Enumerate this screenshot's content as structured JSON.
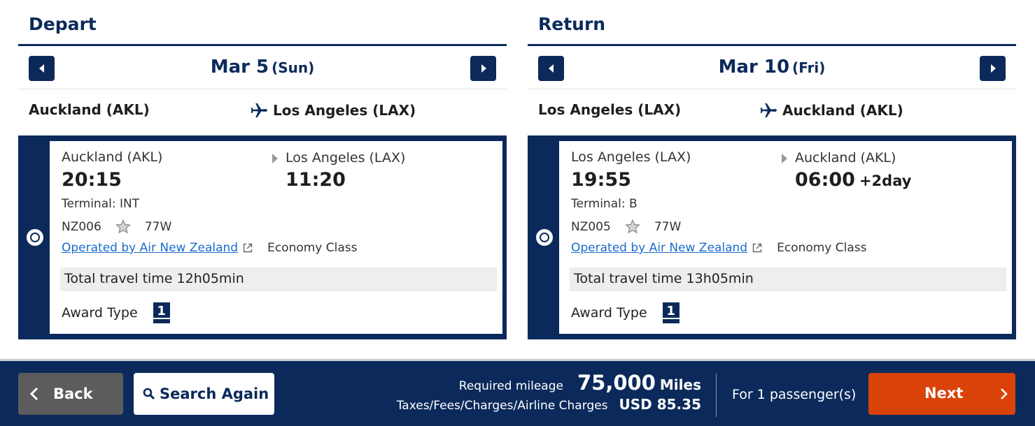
{
  "depart": {
    "title": "Depart",
    "date": "Mar 5",
    "day": "(Sun)",
    "route_from": "Auckland (AKL)",
    "route_to": "Los Angeles (LAX)",
    "flight": {
      "dep_city": "Auckland (AKL)",
      "dep_time": "20:15",
      "arr_city": "Los Angeles (LAX)",
      "arr_time": "11:20",
      "arr_plus": "",
      "terminal": "Terminal: INT",
      "flight_no": "NZ006",
      "aircraft": "77W",
      "operated_by": "Operated by Air New Zealand",
      "cabin": "Economy Class",
      "total_time": "Total travel time 12h05min",
      "award_label": "Award Type",
      "award_value": "1"
    }
  },
  "return": {
    "title": "Return",
    "date": "Mar 10",
    "day": "(Fri)",
    "route_from": "Los Angeles (LAX)",
    "route_to": "Auckland (AKL)",
    "flight": {
      "dep_city": "Los Angeles (LAX)",
      "dep_time": "19:55",
      "arr_city": "Auckland (AKL)",
      "arr_time": "06:00",
      "arr_plus": "+2day",
      "terminal": "Terminal: B",
      "flight_no": "NZ005",
      "aircraft": "77W",
      "operated_by": "Operated by Air New Zealand",
      "cabin": "Economy Class",
      "total_time": "Total travel time 13h05min",
      "award_label": "Award Type",
      "award_value": "1"
    }
  },
  "footer": {
    "back_label": "Back",
    "search_again_label": "Search Again",
    "required_mileage_label": "Required mileage",
    "miles_value": "75,000",
    "miles_unit": "Miles",
    "taxes_label": "Taxes/Fees/Charges/Airline Charges",
    "taxes_value": "USD  85.35",
    "passengers": "For 1 passenger(s)",
    "next_label": "Next"
  },
  "colors": {
    "navy": "#0b2a5b",
    "next_orange": "#d94208",
    "back_gray": "#5c5c5c",
    "link_blue": "#1a6ccc"
  }
}
